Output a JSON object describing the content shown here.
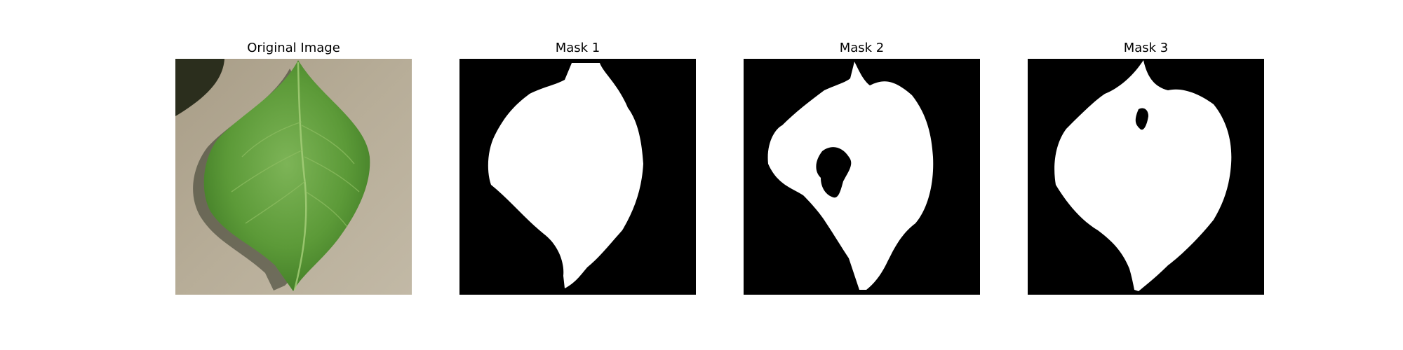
{
  "figure": {
    "panels": [
      {
        "title": "Original Image",
        "kind": "photo",
        "subject": "leaf-photo"
      },
      {
        "title": "Mask 1",
        "kind": "mask",
        "subject": "leaf-mask"
      },
      {
        "title": "Mask 2",
        "kind": "mask",
        "subject": "leaf-mask"
      },
      {
        "title": "Mask 3",
        "kind": "mask",
        "subject": "leaf-mask"
      }
    ]
  },
  "colors": {
    "background": "#ffffff",
    "mask_background": "#000000",
    "mask_foreground": "#ffffff",
    "leaf_green": "#5f9e3a",
    "surface_beige": "#b4a994"
  }
}
